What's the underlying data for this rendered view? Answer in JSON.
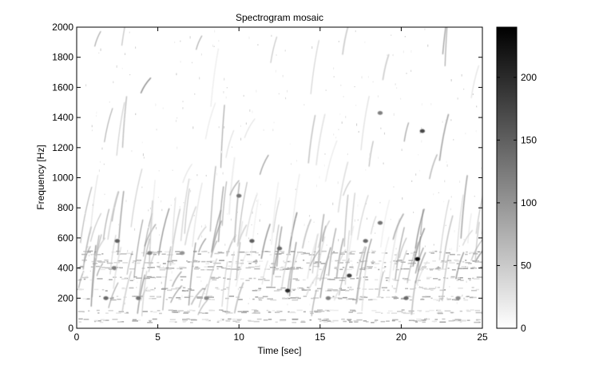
{
  "chart_data": {
    "type": "heatmap",
    "title": "Spectrogram mosaic",
    "xlabel": "Time [sec]",
    "ylabel": "Frequency [Hz]",
    "xlim": [
      0,
      25
    ],
    "ylim": [
      0,
      2000
    ],
    "x_ticks": [
      0,
      5,
      10,
      15,
      20,
      25
    ],
    "y_ticks": [
      0,
      200,
      400,
      600,
      800,
      1000,
      1200,
      1400,
      1600,
      1800,
      2000
    ],
    "colorbar": {
      "range": [
        0,
        240
      ],
      "ticks": [
        0,
        50,
        100,
        150,
        200
      ],
      "colormap": "gray-reversed"
    },
    "grid": false,
    "colors": {
      "low": "#ffffff",
      "high": "#000000"
    },
    "bands": [
      {
        "time": 1.8,
        "freq": 200,
        "value": 140
      },
      {
        "time": 2.3,
        "freq": 400,
        "value": 120
      },
      {
        "time": 2.5,
        "freq": 580,
        "value": 150
      },
      {
        "time": 3.8,
        "freq": 200,
        "value": 130
      },
      {
        "time": 4.5,
        "freq": 500,
        "value": 120
      },
      {
        "time": 6.5,
        "freq": 500,
        "value": 100
      },
      {
        "time": 8.0,
        "freq": 200,
        "value": 110
      },
      {
        "time": 10.0,
        "freq": 880,
        "value": 130
      },
      {
        "time": 10.8,
        "freq": 580,
        "value": 150
      },
      {
        "time": 12.5,
        "freq": 530,
        "value": 140
      },
      {
        "time": 13.0,
        "freq": 250,
        "value": 200
      },
      {
        "time": 15.5,
        "freq": 200,
        "value": 120
      },
      {
        "time": 16.8,
        "freq": 350,
        "value": 180
      },
      {
        "time": 17.8,
        "freq": 580,
        "value": 140
      },
      {
        "time": 18.7,
        "freq": 700,
        "value": 130
      },
      {
        "time": 18.7,
        "freq": 1430,
        "value": 120
      },
      {
        "time": 20.3,
        "freq": 200,
        "value": 140
      },
      {
        "time": 21.0,
        "freq": 460,
        "value": 230
      },
      {
        "time": 21.3,
        "freq": 1310,
        "value": 170
      },
      {
        "time": 23.5,
        "freq": 200,
        "value": 110
      }
    ]
  }
}
